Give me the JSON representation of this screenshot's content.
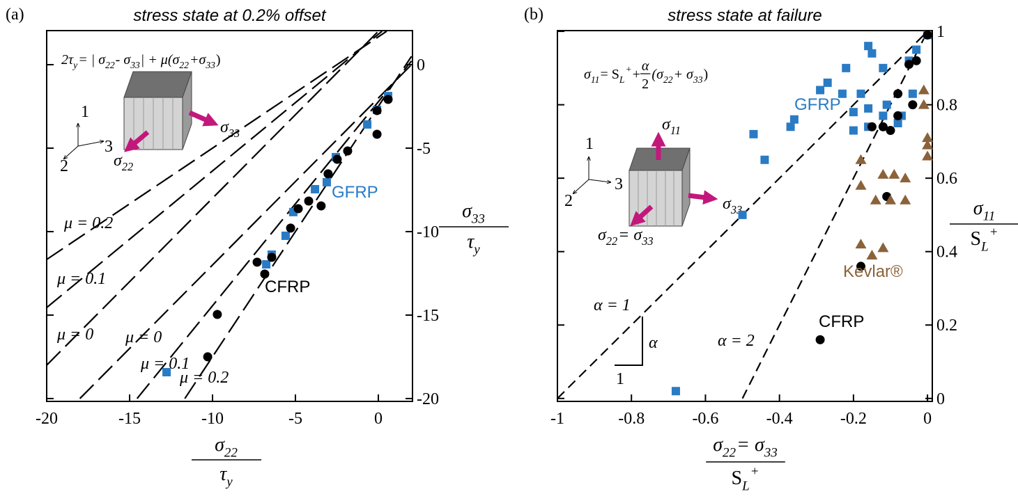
{
  "chart_data": [
    {
      "type": "scatter",
      "panel_label": "(a)",
      "title": "stress state at 0.2% offset",
      "xlim": [
        -20,
        2.06
      ],
      "ylim": [
        -20.17,
        2.04
      ],
      "xticks": [
        -20,
        -15,
        -10,
        -5,
        0
      ],
      "yticks": [
        0,
        -5,
        -10,
        -15,
        -20
      ],
      "x_label": {
        "numerator": [
          {
            "text": "σ"
          },
          {
            "text": "22",
            "sub": true
          }
        ],
        "denominator": [
          {
            "text": "τ"
          },
          {
            "text": "y",
            "sub": true
          }
        ]
      },
      "y_label": {
        "numerator": [
          {
            "text": "σ"
          },
          {
            "text": "33",
            "sub": true
          }
        ],
        "denominator": [
          {
            "text": "τ"
          },
          {
            "text": "y",
            "sub": true
          }
        ]
      },
      "series": [
        {
          "name": "GFRP",
          "color": "#2a7bc4",
          "marker": "square",
          "x": [
            0.59,
            -0.08,
            -0.67,
            -2.56,
            -3.11,
            -3.82,
            -5.13,
            -5.59,
            -6.43,
            -6.76,
            -12.77
          ],
          "y": [
            -1.88,
            -2.71,
            -3.58,
            -5.54,
            -7.04,
            -7.46,
            -8.83,
            -10.25,
            -11.38,
            -11.96,
            -18.42
          ]
        },
        {
          "name": "CFRP",
          "color": "#000000",
          "marker": "circle",
          "x": [
            0.59,
            -0.08,
            -0.08,
            -1.85,
            -2.48,
            -3.03,
            -4.2,
            -3.45,
            -4.83,
            -5.29,
            -6.43,
            -7.31,
            -6.85,
            -9.71,
            -10.29
          ],
          "y": [
            -2.08,
            -2.75,
            -4.17,
            -5.17,
            -5.67,
            -6.54,
            -8.17,
            -8.46,
            -8.63,
            -9.79,
            -11.54,
            -11.83,
            -12.54,
            -14.96,
            -17.5
          ]
        }
      ],
      "curves": [
        {
          "x": [
            -20,
            0.5
          ],
          "y": [
            -11.67,
            2
          ]
        },
        {
          "x": [
            -20,
            0.22
          ],
          "y": [
            -14.55,
            2
          ]
        },
        {
          "x": [
            -20,
            0
          ],
          "y": [
            -18,
            2
          ]
        },
        {
          "x": [
            -18,
            2
          ],
          "y": [
            -20,
            0
          ]
        },
        {
          "x": [
            -14.55,
            2
          ],
          "y": [
            -20,
            0.22
          ]
        },
        {
          "x": [
            -11.67,
            2
          ],
          "y": [
            -20,
            0.5
          ]
        }
      ],
      "annotations": [
        [
          {
            "text": "2τ"
          },
          {
            "text": "y",
            "sub": true
          },
          {
            "text": " = | σ"
          },
          {
            "text": "22",
            "sub": true
          },
          {
            "text": " - σ"
          },
          {
            "text": "33",
            "sub": true
          },
          {
            "text": "| + μ(σ"
          },
          {
            "text": "22",
            "sub": true
          },
          {
            "text": "+σ"
          },
          {
            "text": "33",
            "sub": true
          },
          {
            "text": ")"
          }
        ],
        [
          {
            "text": "μ = 0.2"
          }
        ],
        [
          {
            "text": "μ = 0.1"
          }
        ],
        [
          {
            "text": "μ = 0"
          }
        ],
        [
          {
            "text": "μ = 0"
          }
        ],
        [
          {
            "text": "μ = 0.1"
          }
        ],
        [
          {
            "text": "μ = 0.2"
          }
        ],
        [
          {
            "text": "1"
          }
        ],
        [
          {
            "text": "2"
          }
        ],
        [
          {
            "text": "3"
          }
        ],
        [
          {
            "text": "σ"
          },
          {
            "text": "33",
            "sub": true
          }
        ],
        [
          {
            "text": "σ"
          },
          {
            "text": "22",
            "sub": true
          }
        ]
      ]
    },
    {
      "type": "scatter",
      "panel_label": "(b)",
      "title": "stress state at failure",
      "xlim": [
        -1,
        0.013
      ],
      "ylim": [
        -0.008,
        1.002
      ],
      "xticks": [
        -1,
        -0.8,
        -0.6,
        -0.4,
        -0.2,
        0
      ],
      "yticks": [
        0,
        0.2,
        0.4,
        0.6,
        0.8,
        1
      ],
      "x_label": {
        "numerator": [
          {
            "text": "σ"
          },
          {
            "text": "22",
            "sub": true
          },
          {
            "text": " = σ"
          },
          {
            "text": "33",
            "sub": true
          }
        ],
        "denominator": [
          {
            "text": "S"
          },
          {
            "text": "L",
            "sub": true
          },
          {
            "text": "+",
            "sup": true
          }
        ]
      },
      "y_label": {
        "numerator": [
          {
            "text": "σ"
          },
          {
            "text": "11",
            "sub": true
          }
        ],
        "denominator": [
          {
            "text": "S"
          },
          {
            "text": "L",
            "sub": true
          },
          {
            "text": "+",
            "sup": true
          }
        ]
      },
      "series": [
        {
          "name": "GFRP",
          "color": "#2a7bc4",
          "marker": "square",
          "x": [
            0,
            -0.03,
            -0.05,
            -0.16,
            -0.15,
            -0.12,
            -0.04,
            -0.18,
            -0.16,
            -0.2,
            -0.11,
            -0.08,
            -0.07,
            -0.16,
            -0.2,
            -0.12,
            -0.22,
            -0.23,
            -0.27,
            -0.29,
            -0.36,
            -0.37,
            -0.47,
            -0.44,
            -0.5,
            -0.68
          ],
          "y": [
            0.99,
            0.95,
            0.92,
            0.96,
            0.94,
            0.9,
            0.83,
            0.83,
            0.79,
            0.78,
            0.8,
            0.75,
            0.77,
            0.74,
            0.73,
            0.77,
            0.9,
            0.83,
            0.86,
            0.84,
            0.76,
            0.74,
            0.72,
            0.65,
            0.5,
            0.02
          ]
        },
        {
          "name": "CFRP",
          "color": "#000000",
          "marker": "circle",
          "x": [
            0,
            -0.03,
            -0.05,
            -0.04,
            -0.08,
            -0.08,
            -0.12,
            -0.1,
            -0.15,
            -0.11,
            -0.18,
            -0.29
          ],
          "y": [
            0.99,
            0.92,
            0.91,
            0.8,
            0.83,
            0.77,
            0.74,
            0.73,
            0.74,
            0.55,
            0.36,
            0.16
          ]
        },
        {
          "name": "Kevlar®",
          "color": "#8b6239",
          "marker": "triangle",
          "x": [
            -0.01,
            -0.01,
            0,
            0,
            0,
            -0.18,
            -0.18,
            -0.12,
            -0.09,
            -0.06,
            -0.14,
            -0.1,
            -0.06,
            -0.18,
            -0.15,
            -0.12
          ],
          "y": [
            0.84,
            0.8,
            0.71,
            0.69,
            0.66,
            0.65,
            0.58,
            0.61,
            0.61,
            0.6,
            0.54,
            0.54,
            0.54,
            0.42,
            0.39,
            0.41
          ]
        }
      ],
      "curves": [
        {
          "x": [
            -1,
            0
          ],
          "y": [
            0,
            1
          ]
        },
        {
          "x": [
            -0.5,
            0
          ],
          "y": [
            0,
            1
          ]
        }
      ],
      "annotations": [
        [
          {
            "text": "σ"
          },
          {
            "text": "11",
            "sub": true
          },
          {
            "text": " = S"
          },
          {
            "text": "L",
            "sub": true
          },
          {
            "text": "+",
            "sup": true
          },
          {
            "text": " + "
          },
          {
            "num": "α",
            "den": "2"
          },
          {
            "text": "(σ"
          },
          {
            "text": "22",
            "sub": true
          },
          {
            "text": " + σ"
          },
          {
            "text": "33",
            "sub": true
          },
          {
            "text": ")"
          }
        ],
        [
          {
            "text": "α = 1"
          }
        ],
        [
          {
            "text": "α = 2"
          }
        ],
        [
          {
            "text": "α"
          }
        ],
        [
          {
            "text": "1"
          }
        ],
        [
          {
            "text": "1"
          }
        ],
        [
          {
            "text": "2"
          }
        ],
        [
          {
            "text": "3"
          }
        ],
        [
          {
            "text": "σ"
          },
          {
            "text": "11",
            "sub": true
          }
        ],
        [
          {
            "text": "σ"
          },
          {
            "text": "33",
            "sub": true
          }
        ],
        [
          {
            "text": "σ"
          },
          {
            "text": "22",
            "sub": true
          },
          {
            "text": " = σ"
          },
          {
            "text": "33",
            "sub": true
          }
        ]
      ]
    }
  ]
}
